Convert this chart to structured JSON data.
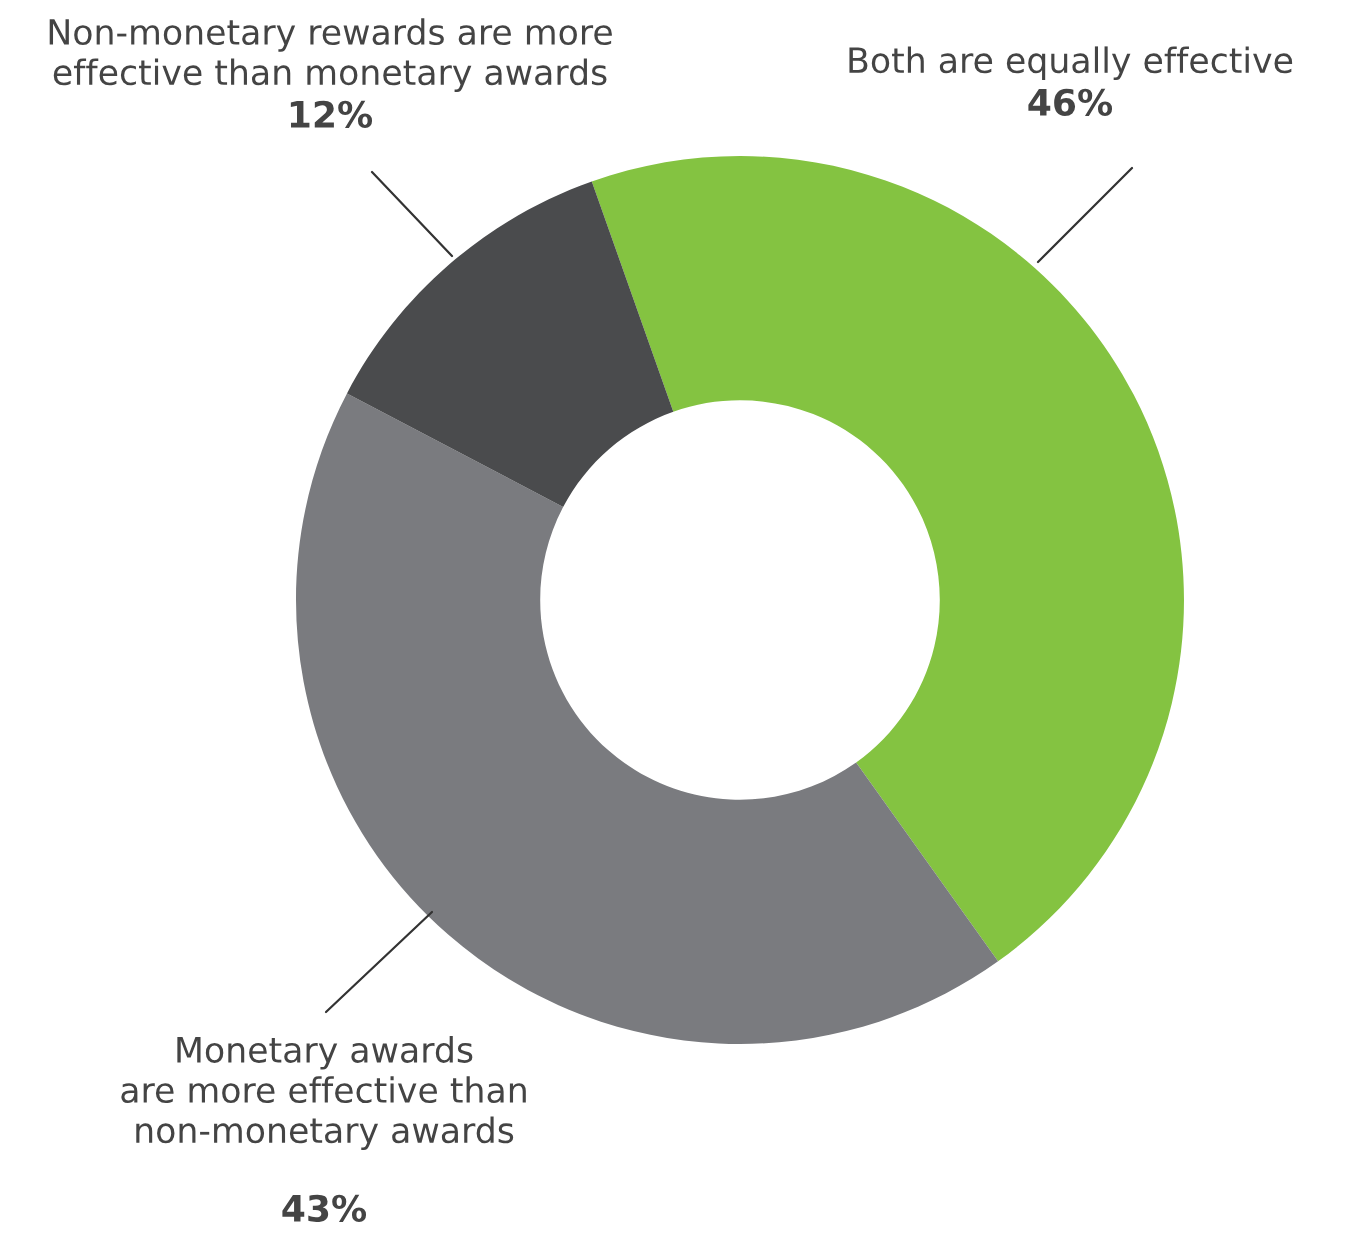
{
  "chart_data": {
    "type": "donut",
    "categories": [
      "Both are equally effective",
      "Monetary awards\nare more effective than\nnon-monetary awards",
      "Non-monetary rewards are more\neffective than monetary awards"
    ],
    "values": [
      46,
      43,
      12
    ],
    "value_labels": [
      "46%",
      "43%",
      "12%"
    ],
    "colors": [
      "#84c341",
      "#7a7b7f",
      "#4a4b4d"
    ]
  }
}
